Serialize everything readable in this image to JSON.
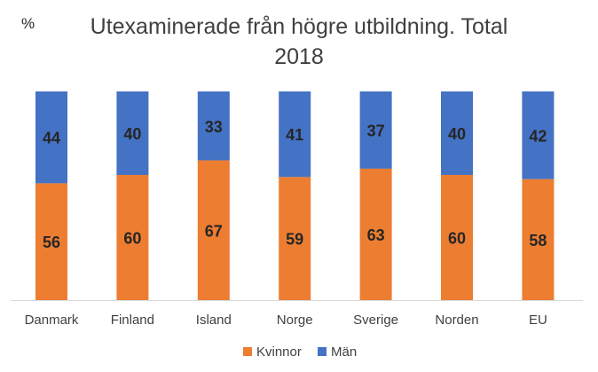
{
  "chart_data": {
    "type": "bar",
    "stacked": true,
    "unit_label": "%",
    "title_line1": "Utexaminerade från högre utbildning. Total",
    "title_line2": "2018",
    "categories": [
      "Danmark",
      "Finland",
      "Island",
      "Norge",
      "Sverige",
      "Norden",
      "EU"
    ],
    "series": [
      {
        "name": "Kvinnor",
        "color": "#ED7D31",
        "values": [
          56,
          60,
          67,
          59,
          63,
          60,
          58
        ]
      },
      {
        "name": "Män",
        "color": "#4472C4",
        "values": [
          44,
          40,
          33,
          41,
          37,
          40,
          42
        ]
      }
    ],
    "ylim": [
      0,
      100
    ],
    "grid": false,
    "legend_position": "bottom"
  }
}
